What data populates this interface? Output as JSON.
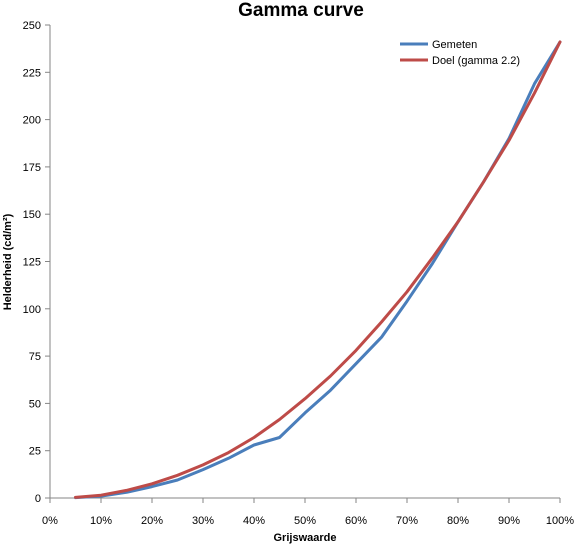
{
  "chart_data": {
    "type": "line",
    "title": "Gamma curve",
    "xlabel": "Grijswaarde",
    "ylabel": "Helderheid (cd/m²)",
    "xlim": [
      0,
      100
    ],
    "ylim": [
      0,
      250
    ],
    "x_ticks": [
      "0%",
      "10%",
      "20%",
      "30%",
      "40%",
      "50%",
      "60%",
      "70%",
      "80%",
      "90%",
      "100%"
    ],
    "y_ticks": [
      "0",
      "25",
      "50",
      "75",
      "100",
      "125",
      "150",
      "175",
      "200",
      "225",
      "250"
    ],
    "grid": false,
    "legend_position": "top-right",
    "x": [
      5,
      10,
      15,
      20,
      25,
      30,
      35,
      40,
      45,
      50,
      55,
      60,
      65,
      70,
      75,
      80,
      85,
      90,
      95,
      100
    ],
    "series": [
      {
        "name": "Gemeten",
        "color": "#4a7ebb",
        "values": [
          0.2,
          1,
          3,
          6,
          9.5,
          15,
          21,
          28,
          32,
          45,
          57,
          71,
          85,
          104,
          124,
          146,
          167,
          190,
          219,
          241
        ]
      },
      {
        "name": "Doel (gamma 2.2)",
        "color": "#be4b48",
        "values": [
          0.3,
          1.5,
          4,
          7.5,
          12,
          17.5,
          24,
          32,
          41.5,
          52.5,
          64.5,
          78,
          93,
          109,
          127,
          146,
          167,
          189,
          214,
          241
        ]
      }
    ]
  }
}
